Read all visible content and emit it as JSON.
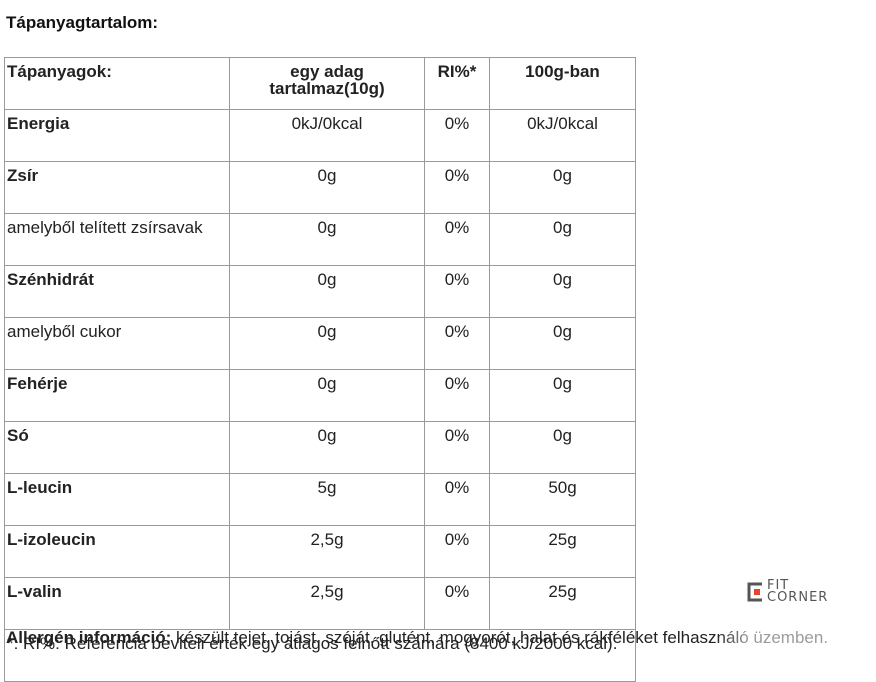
{
  "title": "Tápanyagtartalom:",
  "table": {
    "headers": [
      "Tápanyagok:",
      "egy adag tartalmaz(10g)",
      "RI%*",
      "100g-ban"
    ],
    "rows": [
      {
        "name": "Energia",
        "bold": true,
        "serving": "0kJ/0kcal",
        "ri": "0%",
        "per100": "0kJ/0kcal"
      },
      {
        "name": "Zsír",
        "bold": true,
        "serving": "0g",
        "ri": "0%",
        "per100": "0g"
      },
      {
        "name": "amelyből telített zsírsavak",
        "bold": false,
        "serving": "0g",
        "ri": "0%",
        "per100": "0g"
      },
      {
        "name": "Szénhidrát",
        "bold": true,
        "serving": "0g",
        "ri": "0%",
        "per100": "0g"
      },
      {
        "name": "amelyből cukor",
        "bold": false,
        "serving": "0g",
        "ri": "0%",
        "per100": "0g"
      },
      {
        "name": "Fehérje",
        "bold": true,
        "serving": "0g",
        "ri": "0%",
        "per100": "0g"
      },
      {
        "name": "Só",
        "bold": true,
        "serving": "0g",
        "ri": "0%",
        "per100": "0g"
      },
      {
        "name": "L-leucin",
        "bold": true,
        "serving": "5g",
        "ri": "0%",
        "per100": "50g"
      },
      {
        "name": "L-izoleucin",
        "bold": true,
        "serving": "2,5g",
        "ri": "0%",
        "per100": "25g"
      },
      {
        "name": "L-valin",
        "bold": true,
        "serving": "2,5g",
        "ri": "0%",
        "per100": "25g"
      }
    ],
    "footnote": "*: RI%: Referencia beviteli érték egy átlagos felnőtt számára (8400 kJ/2000 kcal)."
  },
  "allergen": {
    "label": "Allergén információ:",
    "text": " készült tejet, tojást, szóját, glutént, mogyorót, halat és rákféléket felhasználó üzemben."
  },
  "logo": {
    "line1": "FIT",
    "line2": "CORNER",
    "accent_color": "#e8432e"
  }
}
